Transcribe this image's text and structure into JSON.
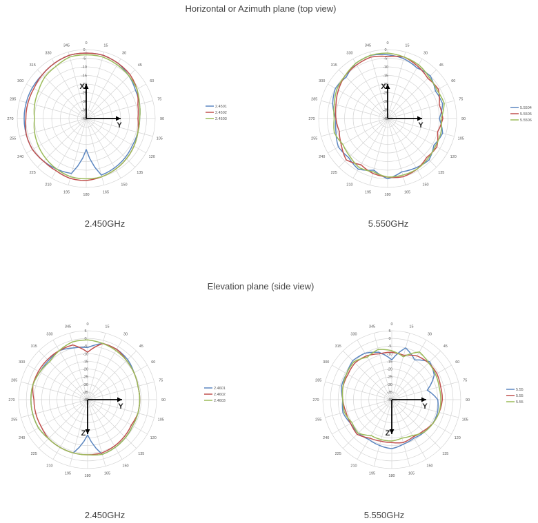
{
  "sections": [
    {
      "title": "Horizontal or Azimuth plane (top view)"
    },
    {
      "title": "Elevation plane (side view)"
    }
  ],
  "colors": {
    "s1": "#5b86c0",
    "s2": "#c0504d",
    "s3": "#9bbb59",
    "grid": "#d4d4d4",
    "axis": "#000000"
  },
  "chart_data": [
    {
      "type": "polar-line",
      "caption": "2.450GHz",
      "angle_labels": [
        "0",
        "15",
        "30",
        "45",
        "60",
        "75",
        "90",
        "105",
        "120",
        "135",
        "150",
        "165",
        "180",
        "195",
        "210",
        "225",
        "240",
        "255",
        "270",
        "285",
        "300",
        "315",
        "330",
        "345"
      ],
      "radial_labels": [
        "0",
        "-5",
        "-10",
        "-15",
        "-20",
        "-25",
        "-30",
        "-35",
        "-40"
      ],
      "rlim": [
        -40,
        0
      ],
      "axes_labels": [
        "X",
        "Y"
      ],
      "series": [
        {
          "name": "2.4501",
          "values": [
            -2,
            -2,
            -3,
            -5,
            -7,
            -8,
            -9,
            -9,
            -9,
            -8,
            -7,
            -6,
            -22,
            -7,
            -6,
            -5,
            -4,
            -4,
            -4,
            -4,
            -4,
            -4,
            -3,
            -2
          ]
        },
        {
          "name": "2.4502",
          "values": [
            -2,
            -2,
            -3,
            -4,
            -6,
            -9,
            -10,
            -9,
            -8,
            -7,
            -6,
            -5,
            -4,
            -4,
            -5,
            -5,
            -4,
            -4,
            -5,
            -5,
            -5,
            -4,
            -3,
            -2
          ]
        },
        {
          "name": "2.4503",
          "values": [
            -3,
            -3,
            -4,
            -5,
            -6,
            -8,
            -9,
            -9,
            -8,
            -7,
            -6,
            -5,
            -5,
            -5,
            -6,
            -7,
            -8,
            -9,
            -10,
            -9,
            -8,
            -6,
            -5,
            -3
          ]
        }
      ]
    },
    {
      "type": "polar-line",
      "caption": "5.550GHz",
      "angle_labels": [
        "0",
        "15",
        "30",
        "45",
        "60",
        "75",
        "90",
        "105",
        "120",
        "135",
        "150",
        "165",
        "180",
        "195",
        "210",
        "225",
        "240",
        "255",
        "270",
        "285",
        "300",
        "315",
        "330",
        "345"
      ],
      "radial_labels": [
        "0",
        "-5",
        "-10",
        "-15",
        "-20",
        "-25",
        "-30",
        "-35",
        "-40"
      ],
      "rlim": [
        -40,
        0
      ],
      "axes_labels": [
        "X",
        "Y"
      ],
      "series": [
        {
          "name": "5.5504",
          "values": [
            -3,
            -4,
            -6,
            -5,
            -8,
            -7,
            -10,
            -7,
            -9,
            -6,
            -7,
            -8,
            -5,
            -9,
            -6,
            -8,
            -7,
            -9,
            -10,
            -7,
            -5,
            -6,
            -3,
            -2
          ]
        },
        {
          "name": "5.5505",
          "values": [
            -4,
            -3,
            -5,
            -7,
            -6,
            -9,
            -8,
            -10,
            -7,
            -8,
            -6,
            -5,
            -6,
            -7,
            -9,
            -6,
            -9,
            -11,
            -10,
            -9,
            -7,
            -5,
            -4,
            -3
          ]
        },
        {
          "name": "5.5506",
          "values": [
            -2,
            -3,
            -4,
            -6,
            -7,
            -6,
            -9,
            -8,
            -8,
            -7,
            -6,
            -6,
            -6,
            -8,
            -7,
            -9,
            -10,
            -8,
            -9,
            -8,
            -6,
            -5,
            -3,
            -2
          ]
        }
      ]
    },
    {
      "type": "polar-line",
      "caption": "2.450GHz",
      "angle_labels": [
        "0",
        "15",
        "30",
        "45",
        "60",
        "75",
        "90",
        "105",
        "120",
        "135",
        "150",
        "165",
        "180",
        "195",
        "210",
        "225",
        "240",
        "255",
        "270",
        "285",
        "300",
        "315",
        "330",
        "345"
      ],
      "radial_labels": [
        "5",
        "0",
        "-5",
        "-10",
        "-15",
        "-20",
        "-25",
        "-30",
        "-35",
        "-40"
      ],
      "rlim": [
        -40,
        5
      ],
      "axes_labels": [
        "Z",
        "Y"
      ],
      "series": [
        {
          "name": "2.4601",
          "values": [
            -6,
            -2,
            -2,
            -3,
            -5,
            -6,
            -6,
            -6,
            -6,
            -5,
            -4,
            -3,
            -17,
            -4,
            -4,
            -4,
            -3,
            -3,
            -3,
            -3,
            -4,
            -4,
            -3,
            -5
          ]
        },
        {
          "name": "2.4602",
          "values": [
            -9,
            -2,
            -2,
            -4,
            -5,
            -6,
            -6,
            -6,
            -7,
            -6,
            -5,
            -4,
            -4,
            -4,
            -4,
            -4,
            -5,
            -5,
            -5,
            -3,
            -3,
            -3,
            -3,
            -3
          ]
        },
        {
          "name": "2.4603",
          "values": [
            -1,
            -2,
            -3,
            -4,
            -5,
            -6,
            -6,
            -6,
            -6,
            -5,
            -4,
            -3,
            -4,
            -4,
            -4,
            -4,
            -3,
            -3,
            -3,
            -3,
            -4,
            -5,
            -3,
            -1
          ]
        }
      ]
    },
    {
      "type": "polar-line",
      "caption": "5.550GHz",
      "angle_labels": [
        "0",
        "15",
        "30",
        "45",
        "60",
        "75",
        "90",
        "105",
        "120",
        "135",
        "150",
        "165",
        "180",
        "195",
        "210",
        "225",
        "240",
        "255",
        "270",
        "285",
        "300",
        "315",
        "330",
        "345"
      ],
      "radial_labels": [
        "5",
        "0",
        "-5",
        "-10",
        "-15",
        "-20",
        "-25",
        "-30",
        "-35",
        "-40"
      ],
      "rlim": [
        -40,
        5
      ],
      "axes_labels": [
        "Z",
        "Y"
      ],
      "series": [
        {
          "name": "5.55",
          "values": [
            -14,
            -5,
            -10,
            -5,
            -8,
            -16,
            -10,
            -9,
            -9,
            -10,
            -11,
            -10,
            -8,
            -9,
            -10,
            -9,
            -9,
            -7,
            -8,
            -6,
            -6,
            -4,
            -5,
            -8
          ]
        },
        {
          "name": "5.55",
          "values": [
            -9,
            -10,
            -7,
            -6,
            -6,
            -7,
            -7,
            -8,
            -9,
            -11,
            -12,
            -11,
            -12,
            -12,
            -11,
            -8,
            -9,
            -9,
            -8,
            -7,
            -7,
            -6,
            -7,
            -9
          ]
        },
        {
          "name": "5.55",
          "values": [
            -8,
            -11,
            -4,
            -6,
            -7,
            -8,
            -8,
            -8,
            -9,
            -10,
            -13,
            -14,
            -13,
            -13,
            -13,
            -9,
            -10,
            -8,
            -8,
            -7,
            -6,
            -5,
            -8,
            -6
          ]
        }
      ]
    }
  ]
}
